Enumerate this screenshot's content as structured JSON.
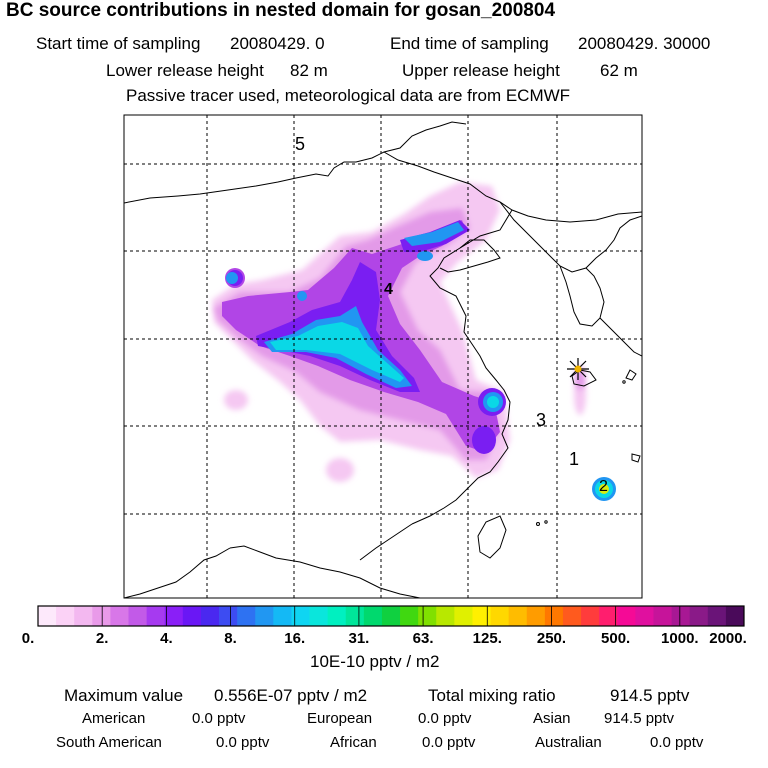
{
  "title": "BC  source contributions in nested domain for gosan_200804",
  "sampling": {
    "start_label": "Start time of sampling",
    "start_value": "20080429.     0",
    "end_label": "End time of sampling",
    "end_value": "20080429. 30000"
  },
  "release": {
    "lower_label": "Lower release height",
    "lower_value": "82 m",
    "upper_label": "Upper release height",
    "upper_value": "62 m"
  },
  "note": "Passive tracer used, meteorological data are from ECMWF",
  "map": {
    "region_labels": [
      "5",
      "4",
      "3",
      "1",
      "2"
    ]
  },
  "colorbar": {
    "ticks": [
      "0.",
      "2.",
      "4.",
      "8.",
      "16.",
      "31.",
      "63.",
      "125.",
      "250.",
      "500.",
      "1000.",
      "2000."
    ],
    "unit": "10E-10 pptv / m2",
    "colors": [
      "#fde9fb",
      "#fbd2f6",
      "#f3b8f0",
      "#e99ae9",
      "#d877e8",
      "#c25ae8",
      "#a63af0",
      "#8a1ff7",
      "#6a17f5",
      "#4a28f0",
      "#3d4cf2",
      "#2e72f2",
      "#2197f2",
      "#14b9f5",
      "#0fd5f2",
      "#0ae6dc",
      "#00f0c0",
      "#00e69a",
      "#00d96e",
      "#10d040",
      "#40d810",
      "#80e000",
      "#b8e800",
      "#e0f000",
      "#fff000",
      "#ffd800",
      "#ffbc00",
      "#ff9c00",
      "#ff7800",
      "#ff5a1e",
      "#ff3c3c",
      "#ff1e6e",
      "#f50a96",
      "#e0109f",
      "#c6149a",
      "#a81894",
      "#8a1a88",
      "#6a1478",
      "#4a0a5a"
    ]
  },
  "footer": {
    "max_label": "Maximum value",
    "max_value": "0.556E-07 pptv / m2",
    "total_label": "Total mixing ratio",
    "total_value": "914.5 pptv",
    "american_label": "American",
    "american_value": "0.0 pptv",
    "european_label": "European",
    "european_value": "0.0 pptv",
    "asian_label": "Asian",
    "asian_value": "914.5 pptv",
    "south_american_label": "South American",
    "south_american_value": "0.0 pptv",
    "african_label": "African",
    "african_value": "0.0 pptv",
    "australian_label": "Australian",
    "australian_value": "0.0 pptv"
  }
}
